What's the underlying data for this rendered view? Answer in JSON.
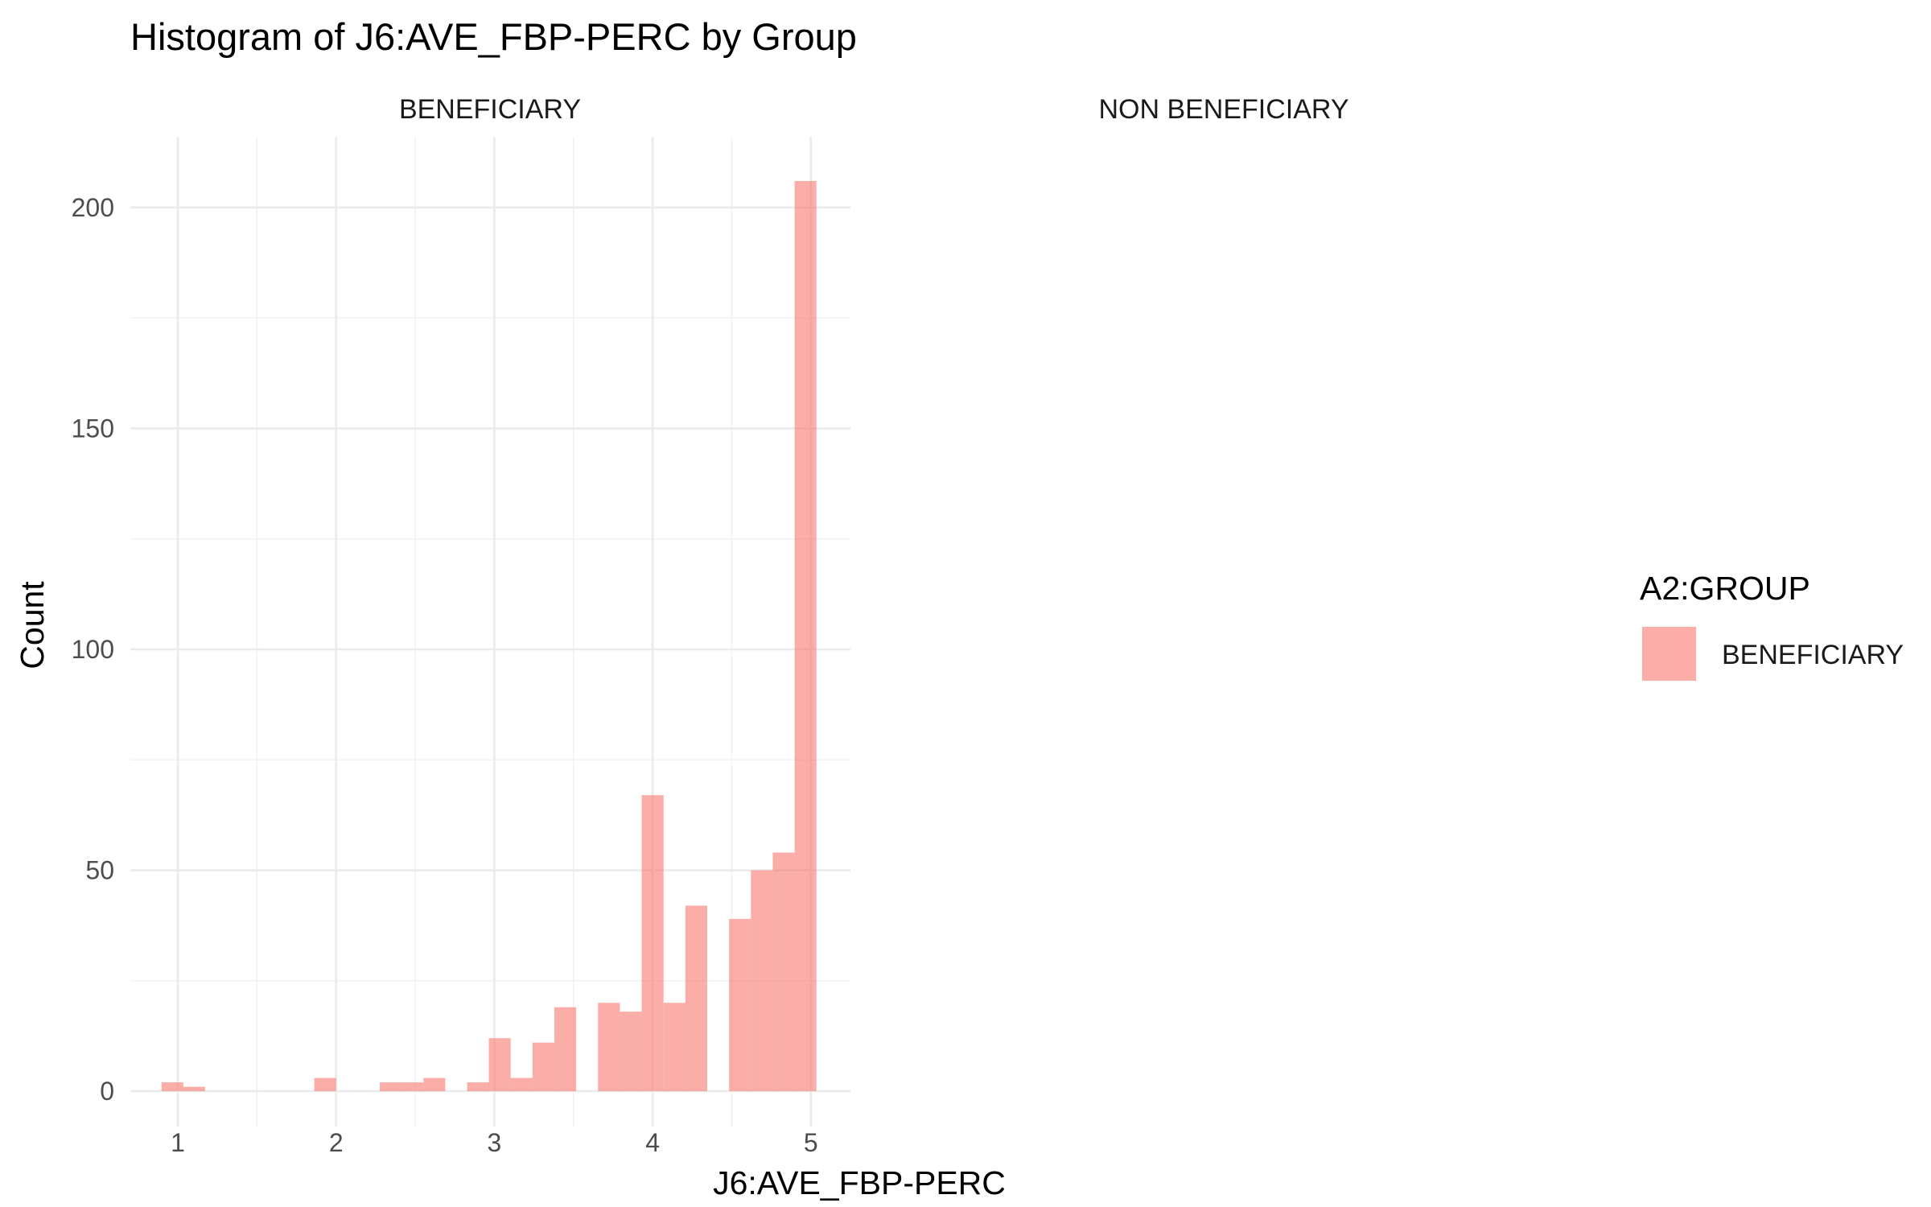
{
  "chart_data": {
    "type": "bar",
    "title": "Histogram of J6:AVE_FBP-PERC by Group",
    "xlabel": "J6:AVE_FBP-PERC",
    "ylabel": "Count",
    "xlim": [
      0.7,
      5.25
    ],
    "ylim": [
      -8,
      216
    ],
    "x_ticks": [
      1,
      2,
      3,
      4,
      5
    ],
    "y_ticks": [
      0,
      50,
      100,
      150,
      200
    ],
    "grid": true,
    "bin_width": 0.1379,
    "panels": [
      {
        "name": "BENEFICIARY",
        "bins": [
          {
            "x": 0.966,
            "count": 2
          },
          {
            "x": 1.103,
            "count": 1
          },
          {
            "x": 1.931,
            "count": 3
          },
          {
            "x": 2.345,
            "count": 2
          },
          {
            "x": 2.483,
            "count": 2
          },
          {
            "x": 2.621,
            "count": 3
          },
          {
            "x": 2.897,
            "count": 2
          },
          {
            "x": 3.034,
            "count": 12
          },
          {
            "x": 3.172,
            "count": 3
          },
          {
            "x": 3.31,
            "count": 11
          },
          {
            "x": 3.448,
            "count": 19
          },
          {
            "x": 3.724,
            "count": 20
          },
          {
            "x": 3.862,
            "count": 18
          },
          {
            "x": 4.0,
            "count": 67
          },
          {
            "x": 4.138,
            "count": 20
          },
          {
            "x": 4.276,
            "count": 42
          },
          {
            "x": 4.552,
            "count": 39
          },
          {
            "x": 4.69,
            "count": 50
          },
          {
            "x": 4.828,
            "count": 54
          },
          {
            "x": 4.966,
            "count": 206
          }
        ]
      },
      {
        "name": "NON BENEFICIARY",
        "bins": []
      }
    ],
    "legend": {
      "title": "A2:GROUP",
      "position": "right",
      "entries": [
        {
          "label": "BENEFICIARY",
          "color": "#F8766D"
        }
      ]
    },
    "bar_color": "#F8766D",
    "bar_opacity": 0.6
  }
}
